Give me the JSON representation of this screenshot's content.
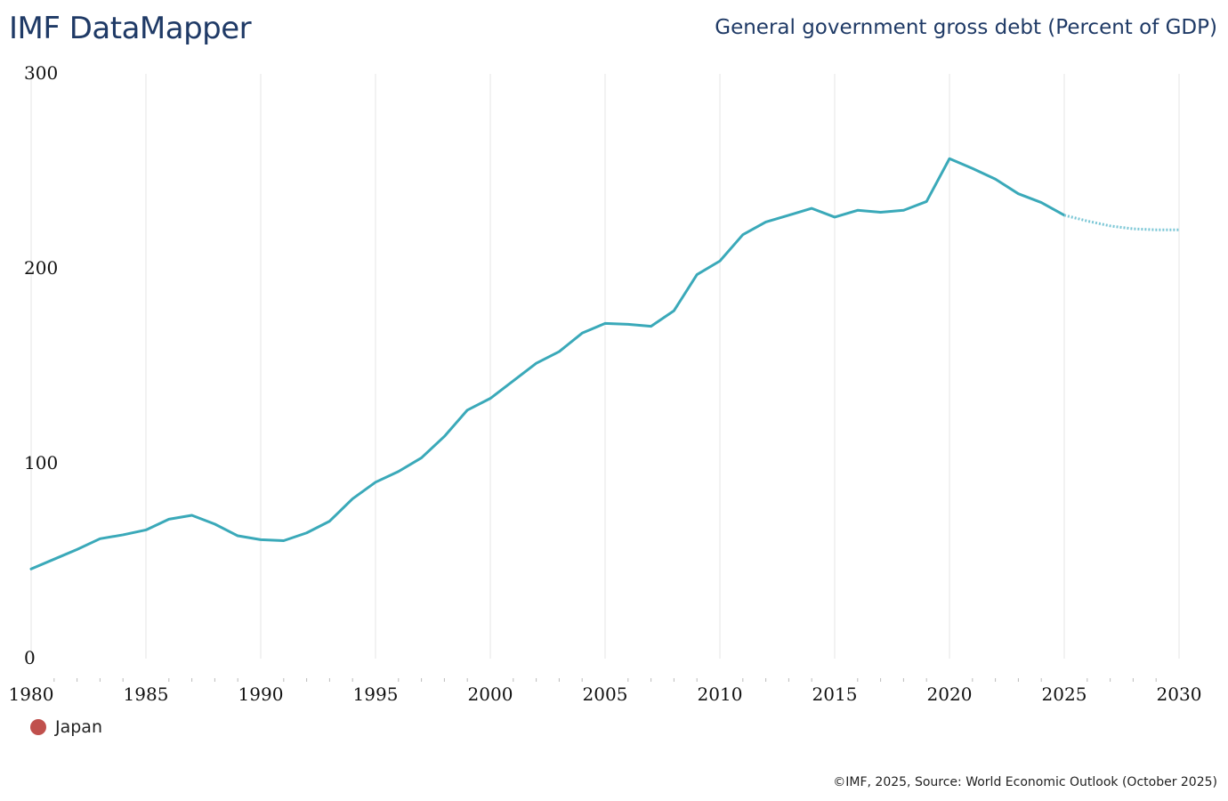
{
  "header": {
    "brand": "IMF DataMapper",
    "title": "General government gross debt (Percent of GDP)"
  },
  "legend": {
    "items": [
      {
        "label": "Japan",
        "color": "#c0504d"
      }
    ]
  },
  "footer": {
    "source": "©IMF, 2025, Source: World Economic Outlook (October 2025)"
  },
  "colors": {
    "line": "#3aa9b9",
    "projection": "#7cc7d6",
    "grid": "#e6e6e6"
  },
  "chart_data": {
    "type": "line",
    "title": "General government gross debt (Percent of GDP)",
    "xlabel": "",
    "ylabel": "",
    "xlim": [
      1980,
      2030
    ],
    "ylim": [
      0,
      300
    ],
    "x_ticks": [
      1980,
      1985,
      1990,
      1995,
      2000,
      2005,
      2010,
      2015,
      2020,
      2025,
      2030
    ],
    "y_ticks": [
      0,
      100,
      200,
      300
    ],
    "grid": true,
    "projection_start": 2025,
    "series": [
      {
        "name": "Japan",
        "x": [
          1980,
          1981,
          1982,
          1983,
          1984,
          1985,
          1986,
          1987,
          1988,
          1989,
          1990,
          1991,
          1992,
          1993,
          1994,
          1995,
          1996,
          1997,
          1998,
          1999,
          2000,
          2001,
          2002,
          2003,
          2004,
          2005,
          2006,
          2007,
          2008,
          2009,
          2010,
          2011,
          2012,
          2013,
          2014,
          2015,
          2016,
          2017,
          2018,
          2019,
          2020,
          2021,
          2022,
          2023,
          2024,
          2025,
          2026,
          2027,
          2028,
          2029,
          2030
        ],
        "values": [
          46.0,
          51.0,
          56.0,
          61.5,
          63.5,
          66.0,
          71.5,
          73.5,
          69.0,
          63.0,
          61.0,
          60.5,
          64.5,
          70.5,
          82.0,
          90.5,
          96.0,
          103.0,
          114.0,
          127.5,
          133.5,
          142.5,
          151.5,
          157.5,
          167.0,
          172.0,
          171.5,
          170.5,
          178.5,
          197.0,
          204.0,
          217.5,
          224.0,
          227.5,
          231.0,
          226.5,
          230.0,
          229.0,
          230.0,
          234.5,
          256.5,
          251.5,
          246.0,
          238.5,
          234.0,
          227.5,
          224.5,
          222.0,
          220.5,
          220.0,
          220.0
        ]
      }
    ]
  }
}
